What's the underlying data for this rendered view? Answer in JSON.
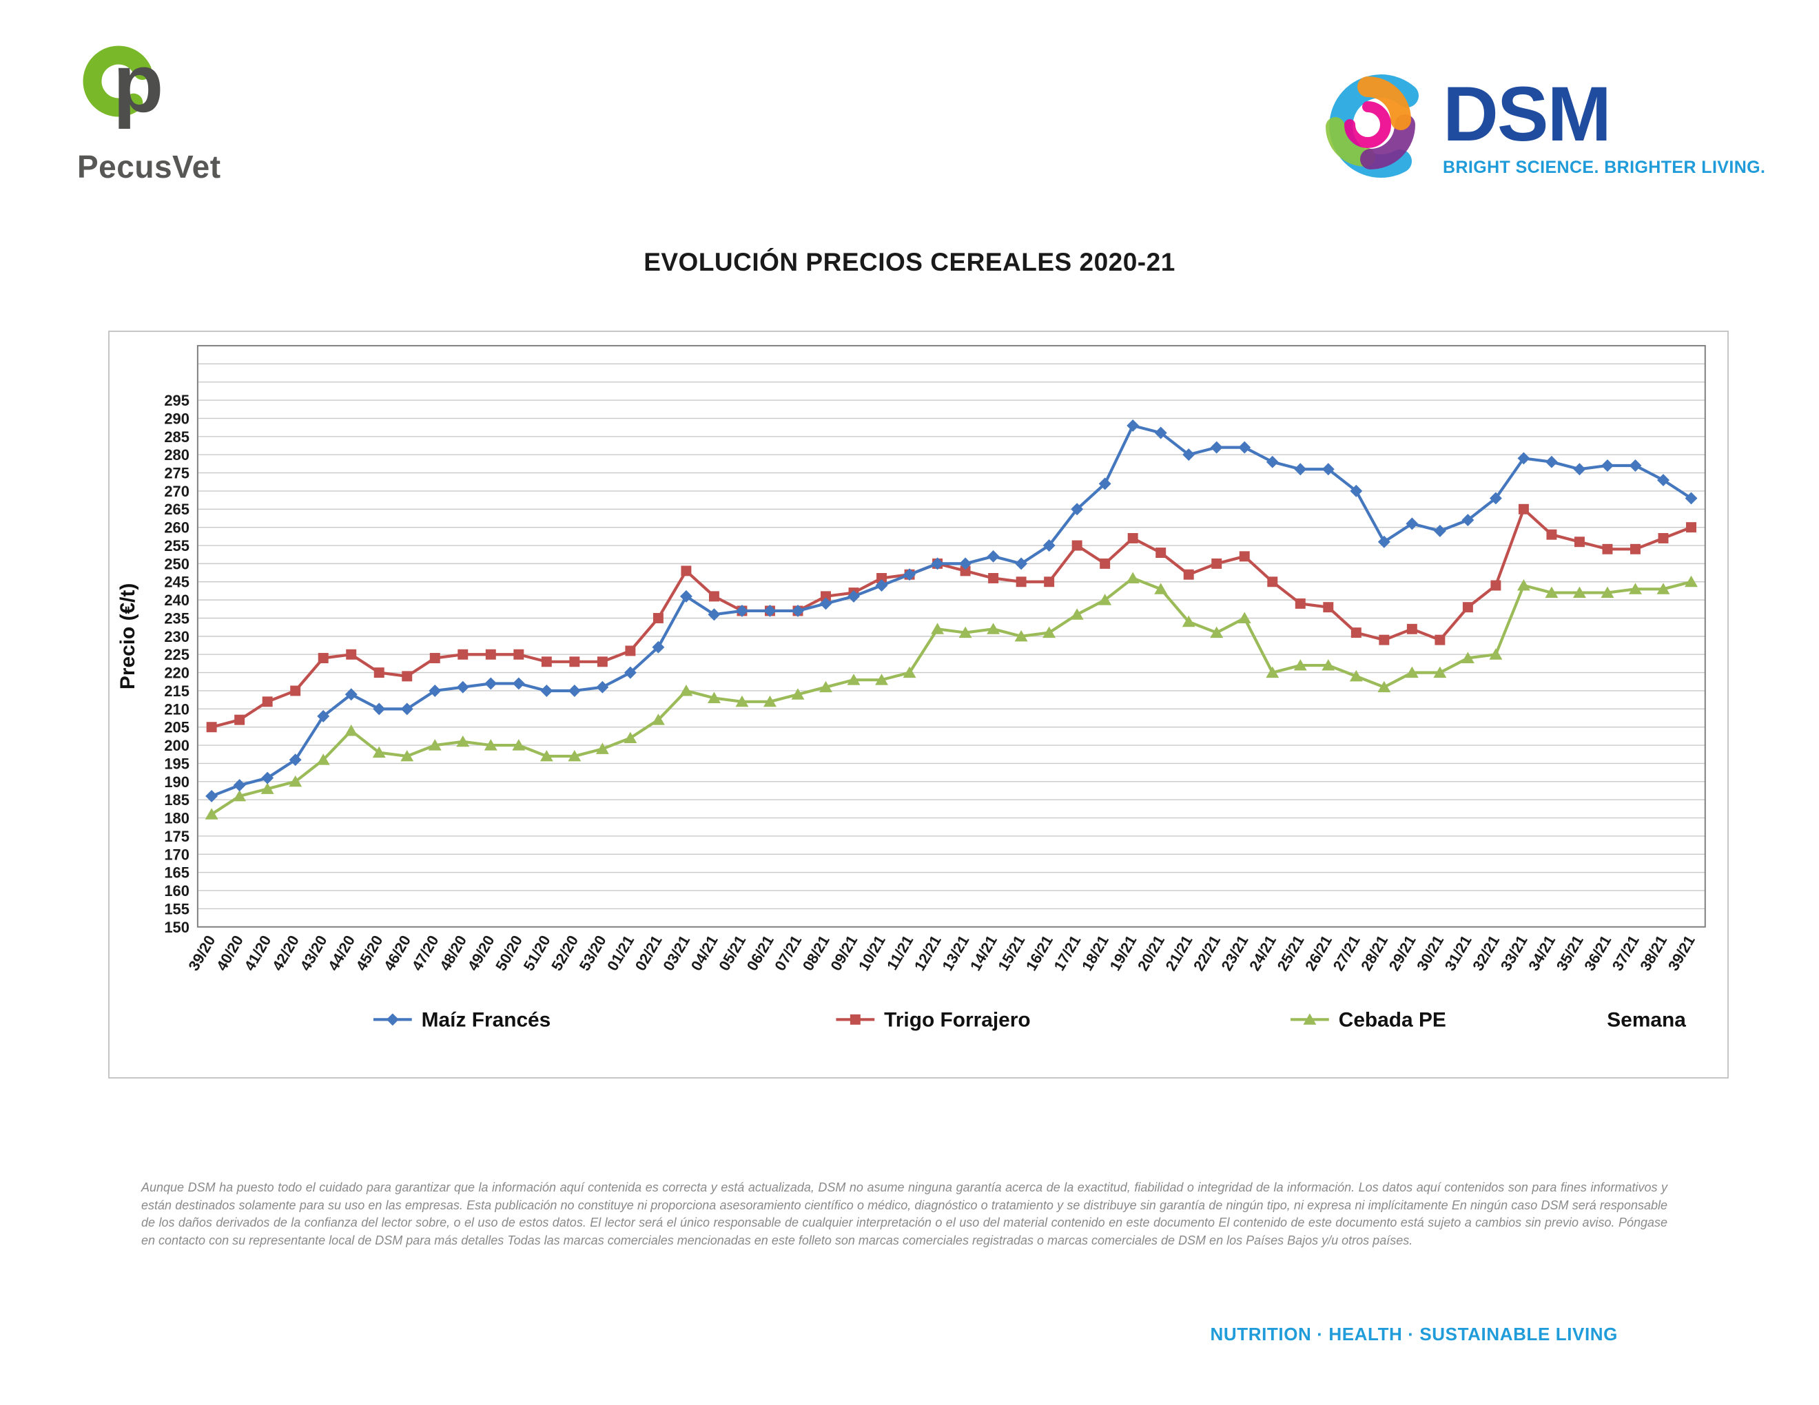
{
  "header": {
    "pecusvet_name": "PecusVet",
    "dsm_name": "DSM",
    "dsm_tagline": "BRIGHT SCIENCE. BRIGHTER LIVING."
  },
  "chart_data": {
    "type": "line",
    "title": "EVOLUCIÓN PRECIOS CEREALES 2020-21",
    "xlabel": "Semana",
    "ylabel": "Precio (€/t)",
    "ylim": [
      150,
      295
    ],
    "ymax_plot": 310,
    "ytick_step": 5,
    "grid": true,
    "legend_position": "bottom",
    "categories": [
      "39/20",
      "40/20",
      "41/20",
      "42/20",
      "43/20",
      "44/20",
      "45/20",
      "46/20",
      "47/20",
      "48/20",
      "49/20",
      "50/20",
      "51/20",
      "52/20",
      "53/20",
      "01/21",
      "02/21",
      "03/21",
      "04/21",
      "05/21",
      "06/21",
      "07/21",
      "08/21",
      "09/21",
      "10/21",
      "11/21",
      "12/21",
      "13/21",
      "14/21",
      "15/21",
      "16/21",
      "17/21",
      "18/21",
      "19/21",
      "20/21",
      "21/21",
      "22/21",
      "23/21",
      "24/21",
      "25/21",
      "26/21",
      "27/21",
      "28/21",
      "29/21",
      "30/21",
      "31/21",
      "32/21",
      "33/21",
      "34/21",
      "35/21",
      "36/21",
      "37/21",
      "38/21",
      "39/21"
    ],
    "series": [
      {
        "name": "Maíz Francés",
        "color": "#4477BE",
        "marker": "diamond",
        "values": [
          186,
          189,
          191,
          196,
          208,
          214,
          210,
          210,
          215,
          216,
          217,
          217,
          215,
          215,
          216,
          220,
          227,
          241,
          236,
          237,
          237,
          237,
          239,
          241,
          244,
          247,
          250,
          250,
          252,
          250,
          255,
          265,
          272,
          288,
          286,
          280,
          282,
          282,
          278,
          276,
          276,
          270,
          256,
          261,
          259,
          262,
          268,
          279,
          278,
          276,
          277,
          277,
          273,
          268
        ]
      },
      {
        "name": "Trigo Forrajero",
        "color": "#C0504D",
        "marker": "square",
        "values": [
          205,
          207,
          212,
          215,
          224,
          225,
          220,
          219,
          224,
          225,
          225,
          225,
          223,
          223,
          223,
          226,
          235,
          248,
          241,
          237,
          237,
          237,
          241,
          242,
          246,
          247,
          250,
          248,
          246,
          245,
          245,
          255,
          250,
          257,
          253,
          247,
          250,
          252,
          245,
          239,
          238,
          231,
          229,
          232,
          229,
          238,
          244,
          265,
          258,
          256,
          254,
          254,
          257,
          260
        ]
      },
      {
        "name": "Cebada PE",
        "color": "#9BBB59",
        "marker": "triangle",
        "values": [
          181,
          186,
          188,
          190,
          196,
          204,
          198,
          197,
          200,
          201,
          200,
          200,
          197,
          197,
          199,
          202,
          207,
          215,
          213,
          212,
          212,
          214,
          216,
          218,
          218,
          220,
          232,
          231,
          232,
          230,
          231,
          236,
          240,
          246,
          243,
          234,
          231,
          235,
          220,
          222,
          222,
          219,
          216,
          220,
          220,
          224,
          225,
          244,
          242,
          242,
          242,
          243,
          243,
          245
        ]
      }
    ]
  },
  "disclaimer": "Aunque DSM ha puesto todo el cuidado para garantizar que la información aquí contenida es correcta y está actualizada, DSM no asume ninguna garantía acerca de la exactitud, fiabilidad o integridad de la información. Los datos aquí contenidos son para fines informativos y están destinados solamente para su uso en las empresas. Esta publicación no constituye ni proporciona asesoramiento científico o médico, diagnóstico o tratamiento y se distribuye sin garantía de ningún tipo, ni expresa ni implícitamente En ningún caso DSM será responsable de los daños derivados de la confianza del lector sobre, o el uso de estos datos. El lector será el único responsable de cualquier interpretación o el uso del material contenido en este documento El contenido de este documento está sujeto a cambios sin previo aviso. Póngase en contacto con su representante local de DSM para más detalles Todas las marcas comerciales mencionadas en este folleto son marcas comerciales registradas o marcas comerciales de DSM en los Países Bajos y/u otros países.",
  "footer": {
    "tagline": "NUTRITION · HEALTH · SUSTAINABLE LIVING"
  }
}
